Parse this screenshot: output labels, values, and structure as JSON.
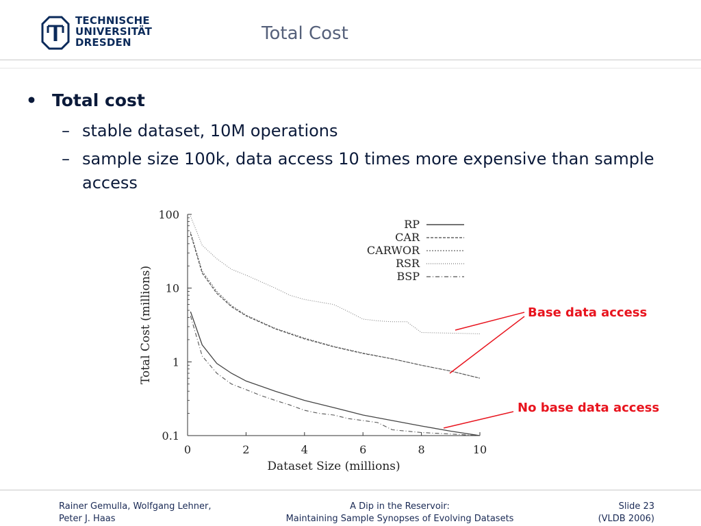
{
  "header": {
    "logo_lines": [
      "TECHNISCHE",
      "UNIVERSITÄT",
      "DRESDEN"
    ],
    "title": "Total Cost"
  },
  "bullets": {
    "main": "Total cost",
    "subs": [
      "stable dataset, 10M operations",
      "sample size 100k, data access 10 times more expensive than sample access"
    ]
  },
  "callouts": {
    "base": "Base data access",
    "nobase": "No base data access",
    "color": "#e8141e"
  },
  "footer": {
    "left_line1": "Rainer Gemulla, Wolfgang Lehner,",
    "left_line2": "Peter J. Haas",
    "center_line1": "A Dip in the Reservoir:",
    "center_line2": "Maintaining Sample Synopses of Evolving Datasets",
    "right_line1": "Slide 23",
    "right_line2": "(VLDB 2006)"
  },
  "chart_data": {
    "type": "line",
    "xlabel": "Dataset Size (millions)",
    "ylabel": "Total Cost (millions)",
    "xlim": [
      0,
      10
    ],
    "ylim": [
      0.1,
      100
    ],
    "yscale": "log",
    "xticks": [
      "0",
      "2",
      "4",
      "6",
      "8",
      "10"
    ],
    "yticks": [
      "0.1",
      "1",
      "10",
      "100"
    ],
    "legend_position": "top-right",
    "series": [
      {
        "name": "RP",
        "style": "solid",
        "x": [
          0.1,
          0.5,
          1,
          1.5,
          2,
          3,
          4,
          5,
          6,
          7,
          8,
          9,
          10
        ],
        "y": [
          4.8,
          1.7,
          0.95,
          0.7,
          0.55,
          0.4,
          0.3,
          0.24,
          0.19,
          0.16,
          0.135,
          0.115,
          0.1
        ]
      },
      {
        "name": "CAR",
        "style": "dashed",
        "x": [
          0.1,
          0.5,
          1,
          1.5,
          2,
          3,
          4,
          5,
          6,
          7,
          8,
          9,
          10
        ],
        "y": [
          55,
          16,
          8.5,
          5.6,
          4.2,
          2.8,
          2.05,
          1.6,
          1.3,
          1.1,
          0.9,
          0.75,
          0.6
        ]
      },
      {
        "name": "CARWOR",
        "style": "dotted",
        "x": [
          0.1,
          0.5,
          1,
          1.5,
          2,
          3,
          4,
          5,
          6,
          7,
          8,
          9,
          10
        ],
        "y": [
          58,
          17,
          9,
          5.8,
          4.3,
          2.85,
          2.1,
          1.62,
          1.32,
          1.1,
          0.9,
          0.75,
          0.6
        ]
      },
      {
        "name": "RSR",
        "style": "sparse-dotted",
        "x": [
          0.1,
          0.5,
          1,
          1.5,
          2,
          3,
          3.5,
          4,
          5,
          5.5,
          6,
          6.5,
          7,
          7.5,
          8,
          9,
          10
        ],
        "y": [
          95,
          38,
          25,
          18,
          15,
          10,
          8,
          7,
          6,
          4.8,
          3.8,
          3.6,
          3.5,
          3.5,
          2.5,
          2.45,
          2.4
        ]
      },
      {
        "name": "BSP",
        "style": "dash-dot",
        "x": [
          0.1,
          0.5,
          1,
          1.5,
          2,
          2.5,
          3,
          3.5,
          4,
          4.5,
          5,
          5.5,
          6,
          6.5,
          7,
          7.5,
          8,
          9,
          10
        ],
        "y": [
          4.2,
          1.2,
          0.7,
          0.5,
          0.42,
          0.35,
          0.3,
          0.26,
          0.22,
          0.2,
          0.19,
          0.17,
          0.16,
          0.15,
          0.12,
          0.115,
          0.11,
          0.105,
          0.1
        ]
      }
    ]
  }
}
